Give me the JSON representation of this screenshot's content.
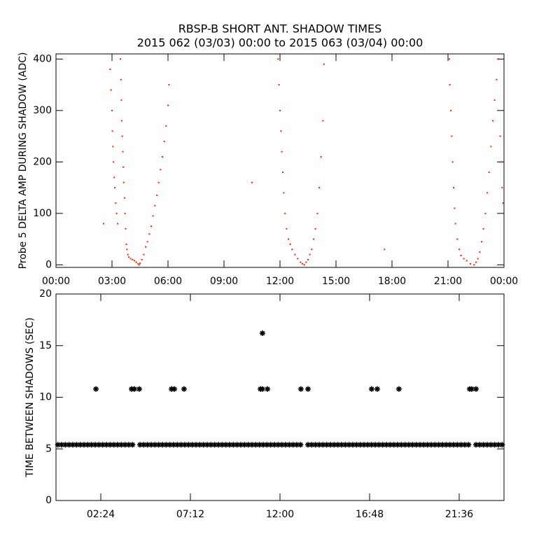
{
  "chart_data": [
    {
      "type": "scatter",
      "title": "RBSP-B SHORT ANT. SHADOW TIMES",
      "subtitle": "2015 062 (03/03) 00:00 to 2015 063 (03/04) 00:00",
      "y_label": "Probe 5 DELTA AMP DURING SHADOW (ADC)",
      "marker": "dot",
      "xlim": [
        0,
        24
      ],
      "ylim": [
        -5,
        410
      ],
      "xticks": [
        {
          "value": 0,
          "label": "00:00"
        },
        {
          "value": 3,
          "label": "03:00"
        },
        {
          "value": 6,
          "label": "06:00"
        },
        {
          "value": 9,
          "label": "09:00"
        },
        {
          "value": 12,
          "label": "12:00"
        },
        {
          "value": 15,
          "label": "15:00"
        },
        {
          "value": 18,
          "label": "18:00"
        },
        {
          "value": 21,
          "label": "21:00"
        },
        {
          "value": 24,
          "label": "00:00"
        }
      ],
      "yticks": [
        0,
        100,
        200,
        300,
        400
      ],
      "series": [
        {
          "color": "#ff2000",
          "x": [
            2.55,
            2.9,
            2.95,
            3.0,
            3.02,
            3.05,
            3.08,
            3.12,
            3.15,
            3.2,
            3.25,
            3.3,
            3.45,
            3.48,
            3.5,
            3.52,
            3.55,
            3.58,
            3.6,
            3.63,
            3.67,
            3.7,
            3.73,
            3.77,
            3.8,
            3.85,
            3.9,
            4.0,
            4.1,
            4.2,
            4.3,
            4.4,
            4.45,
            4.5,
            4.6,
            4.7,
            4.8,
            4.9,
            5.0,
            5.1,
            5.2,
            5.3,
            5.4,
            5.5,
            5.6,
            5.7,
            5.8,
            5.9,
            6.0,
            6.05,
            10.5,
            11.9,
            11.95,
            12.0,
            12.05,
            12.1,
            12.15,
            12.2,
            12.27,
            12.35,
            12.45,
            12.55,
            12.65,
            12.8,
            12.95,
            13.1,
            13.2,
            13.3,
            13.4,
            13.5,
            13.6,
            13.7,
            13.8,
            13.9,
            14.0,
            14.1,
            14.2,
            14.3,
            14.36,
            17.6,
            21.07,
            21.1,
            21.15,
            21.2,
            21.25,
            21.3,
            21.35,
            21.4,
            21.5,
            21.6,
            21.7,
            21.85,
            22.0,
            22.2,
            22.4,
            22.5,
            22.6,
            22.7,
            22.8,
            22.9,
            23.0,
            23.1,
            23.2,
            23.3,
            23.4,
            23.5,
            23.6,
            23.7,
            23.8,
            23.85,
            23.9,
            23.95
          ],
          "values": [
            80,
            380,
            340,
            300,
            260,
            230,
            200,
            170,
            150,
            120,
            100,
            80,
            400,
            360,
            320,
            280,
            250,
            220,
            190,
            160,
            130,
            100,
            70,
            40,
            30,
            20,
            15,
            12,
            10,
            8,
            5,
            2,
            0,
            3,
            10,
            20,
            35,
            45,
            60,
            75,
            95,
            115,
            135,
            160,
            185,
            210,
            240,
            270,
            310,
            350,
            160,
            400,
            350,
            300,
            260,
            220,
            180,
            140,
            100,
            70,
            50,
            40,
            30,
            20,
            12,
            5,
            2,
            0,
            5,
            10,
            20,
            30,
            50,
            70,
            100,
            150,
            210,
            280,
            390,
            30,
            400,
            350,
            300,
            250,
            200,
            150,
            110,
            80,
            50,
            30,
            18,
            12,
            8,
            2,
            0,
            5,
            12,
            25,
            45,
            70,
            100,
            140,
            180,
            230,
            280,
            320,
            360,
            400,
            250,
            200,
            150,
            120
          ]
        }
      ]
    },
    {
      "type": "scatter",
      "y_label": "TIME BETWEEN SHADOWS (SEC)",
      "marker": "asterisk",
      "xlim": [
        0,
        24
      ],
      "ylim": [
        0,
        20
      ],
      "xticks": [
        {
          "value": 2.4,
          "label": "02:24"
        },
        {
          "value": 7.2,
          "label": "07:12"
        },
        {
          "value": 12,
          "label": "12:00"
        },
        {
          "value": 16.8,
          "label": "16:48"
        },
        {
          "value": 21.6,
          "label": "21:36"
        }
      ],
      "yticks": [
        0,
        5,
        10,
        15,
        20
      ],
      "series": [
        {
          "color": "#000000",
          "x": [
            0.1,
            0.3,
            0.5,
            0.7,
            0.9,
            1.1,
            1.3,
            1.5,
            1.7,
            1.9,
            2.1,
            2.3,
            2.5,
            2.7,
            2.9,
            3.1,
            3.3,
            3.5,
            3.7,
            3.9,
            4.1,
            4.5,
            4.7,
            4.9,
            5.1,
            5.3,
            5.5,
            5.7,
            5.9,
            6.1,
            6.3,
            6.5,
            6.7,
            6.9,
            7.1,
            7.3,
            7.5,
            7.7,
            7.9,
            8.1,
            8.3,
            8.5,
            8.7,
            8.9,
            9.1,
            9.3,
            9.5,
            9.7,
            9.9,
            10.1,
            10.3,
            10.5,
            10.7,
            10.9,
            11.1,
            11.3,
            11.5,
            11.7,
            11.9,
            12.1,
            12.3,
            12.5,
            12.7,
            12.9,
            13.1,
            13.5,
            13.7,
            13.9,
            14.1,
            14.3,
            14.5,
            14.7,
            14.9,
            15.1,
            15.3,
            15.5,
            15.7,
            15.9,
            16.1,
            16.3,
            16.5,
            16.7,
            16.9,
            17.1,
            17.3,
            17.5,
            17.7,
            17.9,
            18.1,
            18.3,
            18.5,
            18.7,
            18.9,
            19.1,
            19.3,
            19.5,
            19.7,
            19.9,
            20.1,
            20.3,
            20.5,
            20.7,
            20.9,
            21.1,
            21.3,
            21.5,
            21.7,
            21.9,
            22.1,
            22.5,
            22.7,
            22.9,
            23.1,
            23.3,
            23.5,
            23.7,
            23.9
          ],
          "values": [
            5.4,
            5.4,
            5.4,
            5.4,
            5.4,
            5.4,
            5.4,
            5.4,
            5.4,
            5.4,
            5.4,
            5.4,
            5.4,
            5.4,
            5.4,
            5.4,
            5.4,
            5.4,
            5.4,
            5.4,
            5.4,
            5.4,
            5.4,
            5.4,
            5.4,
            5.4,
            5.4,
            5.4,
            5.4,
            5.4,
            5.4,
            5.4,
            5.4,
            5.4,
            5.4,
            5.4,
            5.4,
            5.4,
            5.4,
            5.4,
            5.4,
            5.4,
            5.4,
            5.4,
            5.4,
            5.4,
            5.4,
            5.4,
            5.4,
            5.4,
            5.4,
            5.4,
            5.4,
            5.4,
            5.4,
            5.4,
            5.4,
            5.4,
            5.4,
            5.4,
            5.4,
            5.4,
            5.4,
            5.4,
            5.4,
            5.4,
            5.4,
            5.4,
            5.4,
            5.4,
            5.4,
            5.4,
            5.4,
            5.4,
            5.4,
            5.4,
            5.4,
            5.4,
            5.4,
            5.4,
            5.4,
            5.4,
            5.4,
            5.4,
            5.4,
            5.4,
            5.4,
            5.4,
            5.4,
            5.4,
            5.4,
            5.4,
            5.4,
            5.4,
            5.4,
            5.4,
            5.4,
            5.4,
            5.4,
            5.4,
            5.4,
            5.4,
            5.4,
            5.4,
            5.4,
            5.4,
            5.4,
            5.4,
            5.4,
            5.4,
            5.4,
            5.4,
            5.4,
            5.4,
            5.4,
            5.4,
            5.4
          ]
        },
        {
          "color": "#000000",
          "x": [
            2.14,
            4.05,
            4.2,
            4.46,
            6.19,
            6.34,
            6.86,
            10.95,
            11.06,
            11.06,
            11.33,
            13.12,
            13.5,
            16.91,
            17.21,
            18.37,
            22.16,
            22.27,
            22.5
          ],
          "values": [
            10.8,
            10.8,
            10.8,
            10.8,
            10.8,
            10.8,
            10.8,
            10.8,
            16.2,
            10.8,
            10.8,
            10.8,
            10.8,
            10.8,
            10.8,
            10.8,
            10.8,
            10.8,
            10.8
          ]
        }
      ]
    }
  ]
}
